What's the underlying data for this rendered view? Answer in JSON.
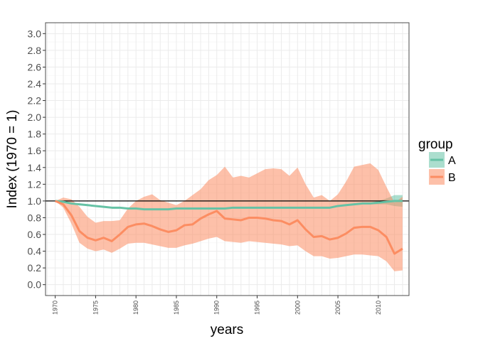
{
  "chart_data": {
    "type": "line",
    "xlabel": "years",
    "ylabel": "Index (1970 = 1)",
    "xlim": [
      1968.8,
      2013.8
    ],
    "ylim": [
      -0.13,
      3.13
    ],
    "x_ticks": [
      1970,
      1975,
      1980,
      1985,
      1990,
      1995,
      2000,
      2005,
      2010
    ],
    "y_ticks": [
      "0.0",
      "0.2",
      "0.4",
      "0.6",
      "0.8",
      "1.0",
      "1.2",
      "1.4",
      "1.6",
      "1.8",
      "2.0",
      "2.2",
      "2.4",
      "2.6",
      "2.8",
      "3.0"
    ],
    "reference_line": 1.0,
    "grid": true,
    "legend": {
      "title": "group",
      "position": "right",
      "entries": [
        "A",
        "B"
      ]
    },
    "x": [
      1970,
      1971,
      1972,
      1973,
      1974,
      1975,
      1976,
      1977,
      1978,
      1979,
      1980,
      1981,
      1982,
      1983,
      1984,
      1985,
      1986,
      1987,
      1988,
      1989,
      1990,
      1991,
      1992,
      1993,
      1994,
      1995,
      1996,
      1997,
      1998,
      1999,
      2000,
      2001,
      2002,
      2003,
      2004,
      2005,
      2006,
      2007,
      2008,
      2009,
      2010,
      2011,
      2012,
      2013
    ],
    "series": [
      {
        "name": "A",
        "color": "#66c2a5",
        "values": [
          1.0,
          0.99,
          0.97,
          0.96,
          0.95,
          0.94,
          0.93,
          0.92,
          0.92,
          0.91,
          0.91,
          0.9,
          0.9,
          0.9,
          0.9,
          0.91,
          0.91,
          0.91,
          0.91,
          0.91,
          0.91,
          0.91,
          0.92,
          0.92,
          0.92,
          0.92,
          0.92,
          0.92,
          0.92,
          0.92,
          0.92,
          0.92,
          0.92,
          0.92,
          0.92,
          0.94,
          0.95,
          0.96,
          0.97,
          0.97,
          0.98,
          0.99,
          1.0,
          1.0
        ],
        "lower": [
          1.0,
          0.99,
          0.97,
          0.96,
          0.95,
          0.94,
          0.93,
          0.92,
          0.92,
          0.91,
          0.91,
          0.9,
          0.9,
          0.9,
          0.9,
          0.9,
          0.9,
          0.9,
          0.9,
          0.9,
          0.9,
          0.9,
          0.91,
          0.91,
          0.91,
          0.91,
          0.91,
          0.91,
          0.91,
          0.91,
          0.91,
          0.91,
          0.91,
          0.91,
          0.91,
          0.93,
          0.94,
          0.95,
          0.96,
          0.96,
          0.96,
          0.96,
          0.94,
          0.93
        ],
        "upper": [
          1.0,
          0.99,
          0.97,
          0.96,
          0.95,
          0.94,
          0.93,
          0.92,
          0.92,
          0.91,
          0.91,
          0.9,
          0.9,
          0.9,
          0.9,
          0.92,
          0.92,
          0.92,
          0.92,
          0.92,
          0.92,
          0.92,
          0.93,
          0.93,
          0.93,
          0.93,
          0.93,
          0.93,
          0.93,
          0.93,
          0.93,
          0.93,
          0.93,
          0.93,
          0.93,
          0.95,
          0.96,
          0.97,
          0.98,
          0.98,
          1.0,
          1.03,
          1.07,
          1.07
        ]
      },
      {
        "name": "B",
        "color": "#fc8d62",
        "values": [
          1.0,
          0.96,
          0.83,
          0.64,
          0.56,
          0.53,
          0.56,
          0.52,
          0.6,
          0.69,
          0.72,
          0.73,
          0.7,
          0.66,
          0.63,
          0.65,
          0.71,
          0.72,
          0.79,
          0.84,
          0.88,
          0.79,
          0.78,
          0.77,
          0.8,
          0.8,
          0.79,
          0.77,
          0.76,
          0.72,
          0.77,
          0.66,
          0.57,
          0.58,
          0.54,
          0.56,
          0.61,
          0.68,
          0.69,
          0.69,
          0.65,
          0.57,
          0.37,
          0.43
        ],
        "lower": [
          1.0,
          0.92,
          0.73,
          0.5,
          0.43,
          0.4,
          0.42,
          0.38,
          0.43,
          0.49,
          0.5,
          0.5,
          0.48,
          0.46,
          0.44,
          0.44,
          0.47,
          0.49,
          0.52,
          0.55,
          0.57,
          0.52,
          0.51,
          0.5,
          0.52,
          0.51,
          0.5,
          0.49,
          0.48,
          0.46,
          0.47,
          0.4,
          0.34,
          0.34,
          0.31,
          0.32,
          0.34,
          0.36,
          0.36,
          0.35,
          0.34,
          0.28,
          0.16,
          0.17
        ],
        "upper": [
          1.0,
          1.04,
          1.02,
          0.93,
          0.81,
          0.74,
          0.76,
          0.76,
          0.77,
          0.91,
          1.0,
          1.05,
          1.08,
          1.01,
          0.98,
          0.95,
          1.0,
          1.07,
          1.14,
          1.25,
          1.31,
          1.41,
          1.28,
          1.3,
          1.28,
          1.33,
          1.38,
          1.39,
          1.38,
          1.3,
          1.4,
          1.2,
          1.04,
          1.07,
          1.0,
          1.08,
          1.23,
          1.41,
          1.43,
          1.45,
          1.37,
          1.17,
          0.98,
          1.05
        ]
      }
    ]
  }
}
